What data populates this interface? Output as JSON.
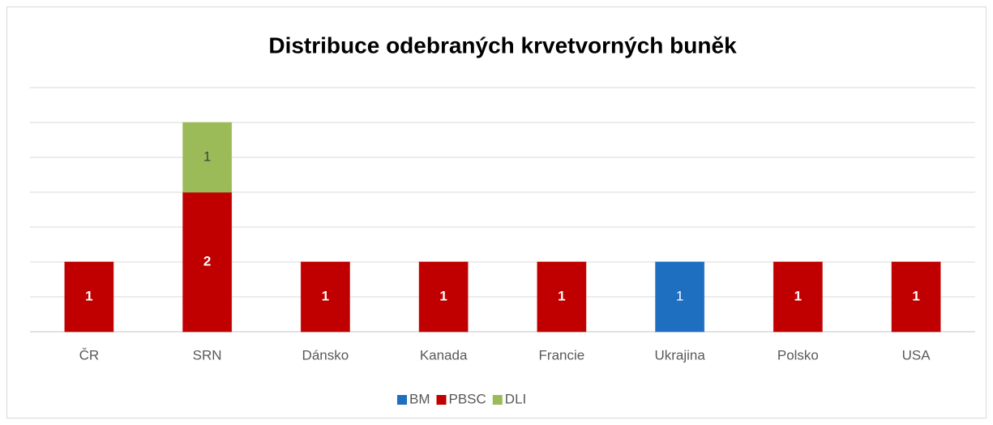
{
  "chart_data": {
    "type": "stacked_bar",
    "title": "Distribuce odebraných krvetvorných buněk",
    "categories": [
      "ČR",
      "SRN",
      "Dánsko",
      "Kanada",
      "Francie",
      "Ukrajina",
      "Polsko",
      "USA"
    ],
    "series": [
      {
        "name": "BM",
        "color": "#1f6fc0",
        "values": [
          null,
          null,
          null,
          null,
          null,
          1,
          null,
          null
        ]
      },
      {
        "name": "PBSC",
        "color": "#c00000",
        "values": [
          1,
          2,
          1,
          1,
          1,
          null,
          1,
          1
        ]
      },
      {
        "name": "DLI",
        "color": "#9bbb59",
        "values": [
          null,
          1,
          null,
          null,
          null,
          null,
          null,
          null
        ]
      }
    ],
    "ylim": [
      0,
      3.5
    ],
    "yticks": [
      0,
      0.5,
      1,
      1.5,
      2,
      2.5,
      3,
      3.5
    ],
    "grid": true,
    "legend": "bottom"
  }
}
